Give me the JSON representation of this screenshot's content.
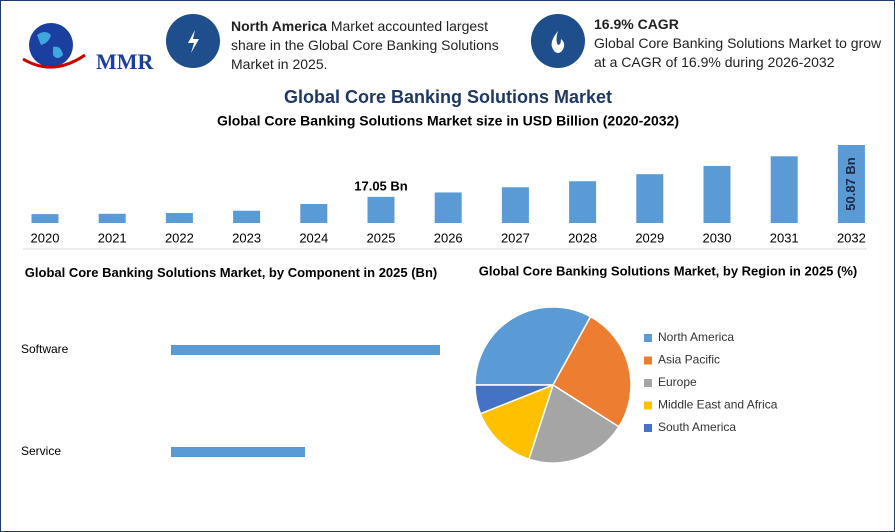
{
  "header": {
    "logo": "MMR",
    "info1": {
      "bold": "North America",
      "text": "Market accounted largest share in the Global Core Banking Solutions Market in 2025."
    },
    "info2": {
      "title": "16.9% CAGR",
      "text": "Global Core Banking Solutions Market to grow at a CAGR of 16.9% during 2026-2032"
    },
    "title": "Global Core Banking Solutions Market"
  },
  "chart_data": [
    {
      "type": "bar",
      "title": "Global Core Banking Solutions Market size in USD Billion (2020-2032)",
      "categories": [
        "2020",
        "2021",
        "2022",
        "2023",
        "2024",
        "2025",
        "2026",
        "2027",
        "2028",
        "2029",
        "2030",
        "2031",
        "2032"
      ],
      "values": [
        5.8,
        6.0,
        6.5,
        8.0,
        12.4,
        17.05,
        19.93,
        23.3,
        27.24,
        31.84,
        37.22,
        43.51,
        50.87
      ],
      "value_labels": [
        null,
        null,
        null,
        null,
        null,
        "17.05 Bn",
        null,
        null,
        null,
        null,
        null,
        null,
        "50.87 Bn"
      ],
      "color": "#5b9bd5"
    },
    {
      "type": "hbar",
      "title": "Global Core Banking Solutions Market, by Component in 2025 (Bn)",
      "categories": [
        "Software",
        "Service"
      ],
      "values": [
        11.38,
        5.67
      ],
      "color": "#5b9bd5"
    },
    {
      "type": "pie",
      "title": "Global Core Banking Solutions Market, by Region in 2025 (%)",
      "categories": [
        "North America",
        "Asia Pacific",
        "Europe",
        "Middle East and Africa",
        "South America"
      ],
      "values": [
        33,
        26,
        21,
        14,
        6
      ],
      "colors": [
        "#5b9bd5",
        "#ed7d31",
        "#a5a5a5",
        "#ffc000",
        "#4472c4"
      ]
    }
  ]
}
